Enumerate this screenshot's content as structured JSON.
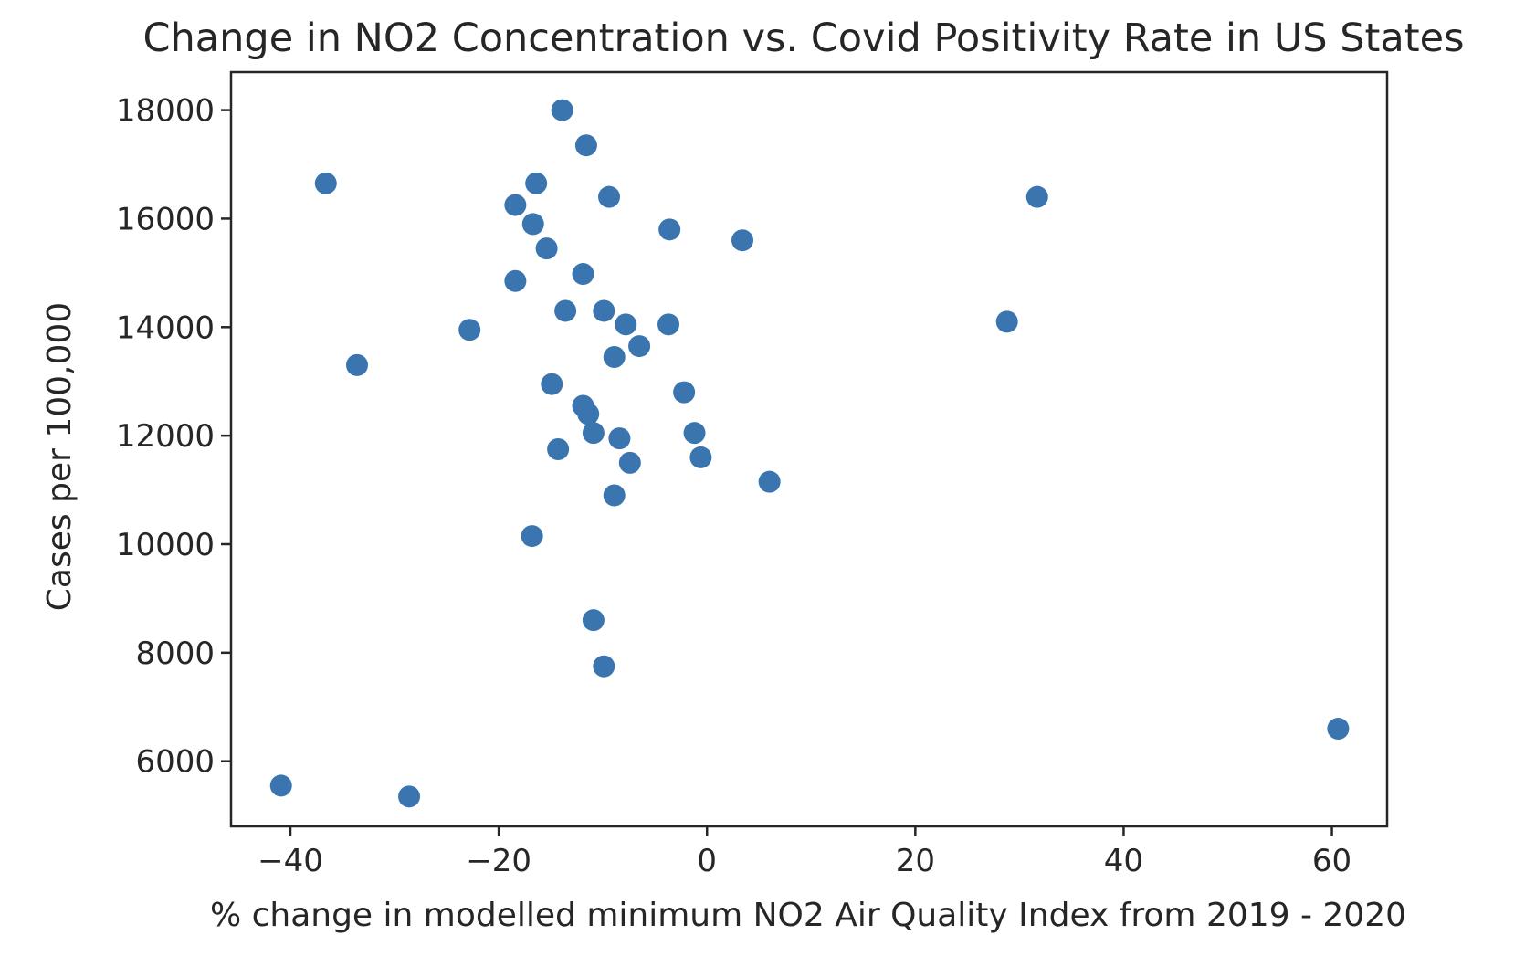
{
  "chart_data": {
    "type": "scatter",
    "title": "Change in NO2 Concentration vs. Covid Positivity Rate in US States",
    "xlabel": "% change in modelled minimum NO2 Air Quality Index from 2019 - 2020",
    "ylabel": "Cases per 100,000",
    "xlim": [
      -45.7,
      65.3
    ],
    "ylim": [
      4800,
      18700
    ],
    "xticks": [
      -40,
      -20,
      0,
      20,
      40,
      60
    ],
    "xtick_labels": [
      "−40",
      "−20",
      "0",
      "20",
      "40",
      "60"
    ],
    "yticks": [
      6000,
      8000,
      10000,
      12000,
      14000,
      16000,
      18000
    ],
    "ytick_labels": [
      "6000",
      "8000",
      "10000",
      "12000",
      "14000",
      "16000",
      "18000"
    ],
    "grid": false,
    "marker_color": "#3a75b0",
    "series": [
      {
        "name": "US States",
        "points": [
          {
            "x": -13.9,
            "y": 18000
          },
          {
            "x": -11.6,
            "y": 17350
          },
          {
            "x": -36.6,
            "y": 16650
          },
          {
            "x": -16.4,
            "y": 16650
          },
          {
            "x": -9.4,
            "y": 16400
          },
          {
            "x": 31.7,
            "y": 16400
          },
          {
            "x": -18.4,
            "y": 16250
          },
          {
            "x": -16.7,
            "y": 15900
          },
          {
            "x": -3.6,
            "y": 15800
          },
          {
            "x": 3.4,
            "y": 15600
          },
          {
            "x": -15.4,
            "y": 15450
          },
          {
            "x": -11.9,
            "y": 14980
          },
          {
            "x": -18.4,
            "y": 14850
          },
          {
            "x": -13.6,
            "y": 14300
          },
          {
            "x": -9.9,
            "y": 14300
          },
          {
            "x": -7.8,
            "y": 14050
          },
          {
            "x": -3.7,
            "y": 14050
          },
          {
            "x": 28.8,
            "y": 14100
          },
          {
            "x": -22.8,
            "y": 13950
          },
          {
            "x": -6.5,
            "y": 13650
          },
          {
            "x": -8.9,
            "y": 13450
          },
          {
            "x": -33.6,
            "y": 13300
          },
          {
            "x": -14.9,
            "y": 12950
          },
          {
            "x": -2.2,
            "y": 12800
          },
          {
            "x": -11.9,
            "y": 12550
          },
          {
            "x": -11.4,
            "y": 12400
          },
          {
            "x": -10.9,
            "y": 12050
          },
          {
            "x": -1.2,
            "y": 12050
          },
          {
            "x": -8.4,
            "y": 11950
          },
          {
            "x": -14.3,
            "y": 11750
          },
          {
            "x": -0.6,
            "y": 11600
          },
          {
            "x": -7.4,
            "y": 11500
          },
          {
            "x": 6.0,
            "y": 11150
          },
          {
            "x": -8.9,
            "y": 10900
          },
          {
            "x": -16.8,
            "y": 10150
          },
          {
            "x": -10.9,
            "y": 8600
          },
          {
            "x": -9.9,
            "y": 7750
          },
          {
            "x": 60.6,
            "y": 6600
          },
          {
            "x": -40.9,
            "y": 5550
          },
          {
            "x": -28.6,
            "y": 5350
          }
        ]
      }
    ]
  }
}
